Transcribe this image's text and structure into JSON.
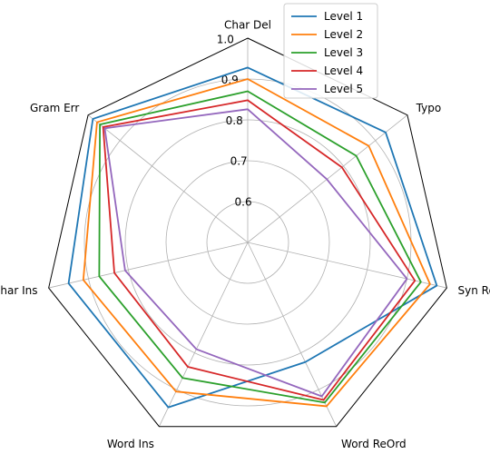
{
  "chart_data": {
    "type": "radar",
    "categories": [
      "Char Del",
      "Typo",
      "Syn Repl",
      "Word ReOrd",
      "Word Ins",
      "Char Ins",
      "Gram Err"
    ],
    "rlim": [
      0.5,
      1.0
    ],
    "rticks": [
      0.6,
      0.7,
      0.8,
      0.9,
      1.0
    ],
    "rtick_labels": [
      "0.6",
      "0.7",
      "0.8",
      "0.9",
      "1.0"
    ],
    "grid": true,
    "legend_position": "top-right",
    "series": [
      {
        "name": "Level 1",
        "color": "#1f77b4",
        "values": [
          0.928,
          0.932,
          0.975,
          0.825,
          0.948,
          0.95,
          0.985
        ]
      },
      {
        "name": "Level 2",
        "color": "#ff7f0e",
        "values": [
          0.9,
          0.879,
          0.958,
          0.945,
          0.905,
          0.913,
          0.972
        ]
      },
      {
        "name": "Level 3",
        "color": "#2ca02c",
        "values": [
          0.87,
          0.84,
          0.935,
          0.935,
          0.868,
          0.873,
          0.963
        ]
      },
      {
        "name": "Level 4",
        "color": "#d62728",
        "values": [
          0.848,
          0.795,
          0.92,
          0.928,
          0.838,
          0.835,
          0.953
        ]
      },
      {
        "name": "Level 5",
        "color": "#9467bd",
        "values": [
          0.826,
          0.748,
          0.9,
          0.918,
          0.79,
          0.808,
          0.948
        ]
      }
    ]
  }
}
